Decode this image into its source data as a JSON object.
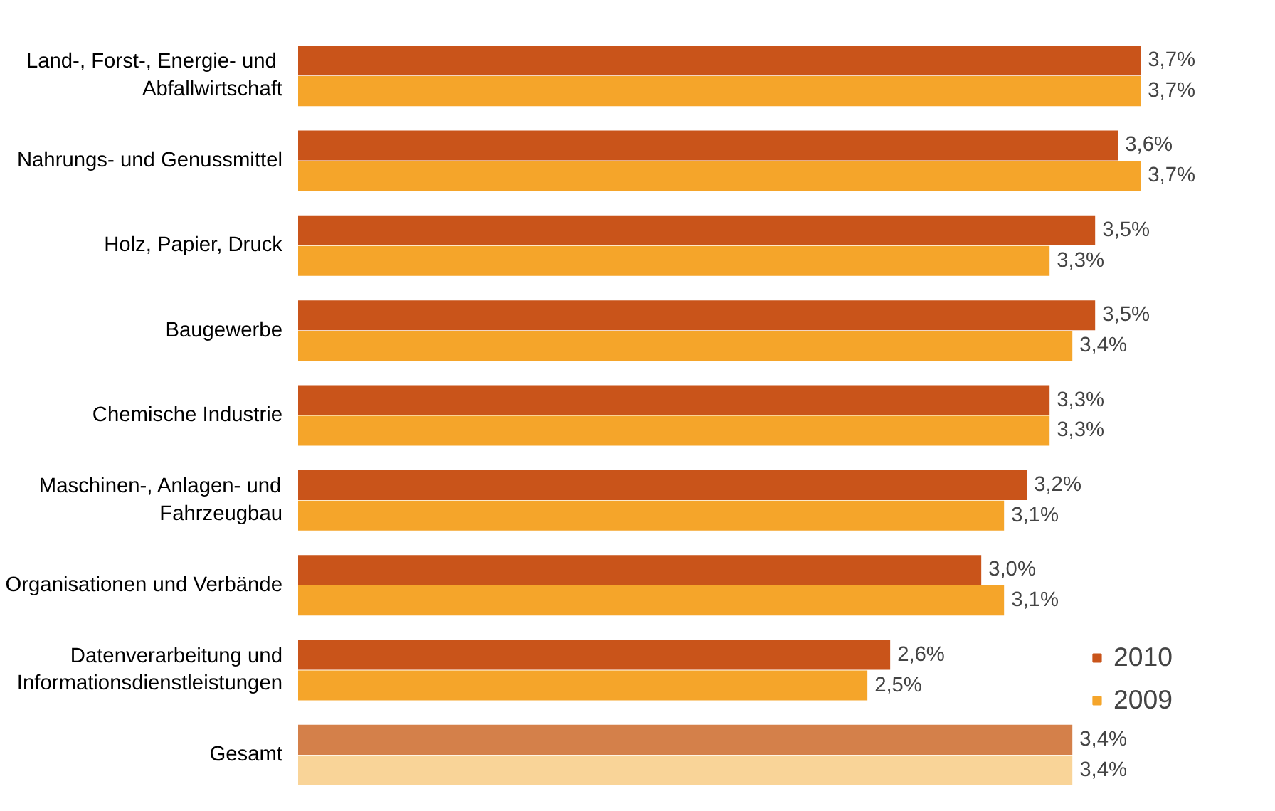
{
  "chart_data": {
    "type": "bar",
    "orientation": "horizontal",
    "categories": [
      "Land-, Forst-,  Energie- und\nAbfallwirtschaft",
      "Nahrungs- und Genussmittel",
      "Holz, Papier, Druck",
      "Baugewerbe",
      "Chemische Industrie",
      "Maschinen-, Anlagen- und\nFahrzeugbau",
      "Organisationen und Verbände",
      "Datenverarbeitung und\nInformationsdienstleistungen",
      "Gesamt"
    ],
    "series": [
      {
        "name": "2010",
        "color": "#c9541a",
        "colors": [
          "#c9541a",
          "#c9541a",
          "#c9541a",
          "#c9541a",
          "#c9541a",
          "#c9541a",
          "#c9541a",
          "#c9541a",
          "#d4804a"
        ],
        "values": [
          3.7,
          3.6,
          3.5,
          3.5,
          3.3,
          3.2,
          3.0,
          2.6,
          3.4
        ],
        "value_labels": [
          "3,7%",
          "3,6%",
          "3,5%",
          "3,5%",
          "3,3%",
          "3,2%",
          "3,0%",
          "2,6%",
          "3,4%"
        ]
      },
      {
        "name": "2009",
        "color": "#f5a52a",
        "colors": [
          "#f5a52a",
          "#f5a52a",
          "#f5a52a",
          "#f5a52a",
          "#f5a52a",
          "#f5a52a",
          "#f5a52a",
          "#f5a52a",
          "#f9d498"
        ],
        "values": [
          3.7,
          3.7,
          3.3,
          3.4,
          3.3,
          3.1,
          3.1,
          2.5,
          3.4
        ],
        "value_labels": [
          "3,7%",
          "3,7%",
          "3,3%",
          "3,4%",
          "3,3%",
          "3,1%",
          "3,1%",
          "2,5%",
          "3,4%"
        ]
      }
    ],
    "tick_labels": "y",
    "grid": false,
    "legend": "bottom right"
  }
}
